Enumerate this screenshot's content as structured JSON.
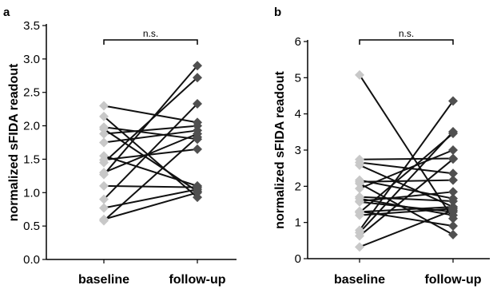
{
  "chart_data": [
    {
      "panel": "a",
      "type": "scatter",
      "ylabel": "normalized sFIDA readout",
      "categories": [
        "baseline",
        "follow-up"
      ],
      "ylim": [
        0,
        3.5
      ],
      "yticks": [
        "0.0",
        "0.5",
        "1.0",
        "1.5",
        "2.0",
        "2.5",
        "3.0",
        "3.5"
      ],
      "significance": "n.s.",
      "colors": {
        "baseline": "#c8c8c8",
        "followup": "#505050",
        "line": "#111111"
      },
      "pairs": [
        [
          2.3,
          2.05
        ],
        [
          2.14,
          0.93
        ],
        [
          1.98,
          1.8
        ],
        [
          1.95,
          1.02
        ],
        [
          1.88,
          2.0
        ],
        [
          1.75,
          1.93
        ],
        [
          1.55,
          1.1
        ],
        [
          1.49,
          1.65
        ],
        [
          1.45,
          2.72
        ],
        [
          1.3,
          1.88
        ],
        [
          1.27,
          2.9
        ],
        [
          1.1,
          1.08
        ],
        [
          0.9,
          2.33
        ],
        [
          0.77,
          1.05
        ],
        [
          0.6,
          1.0
        ],
        [
          0.58,
          1.83
        ]
      ]
    },
    {
      "panel": "b",
      "type": "scatter",
      "ylabel": "normalized sFIDA readout",
      "categories": [
        "baseline",
        "follow-up"
      ],
      "ylim": [
        0,
        6.5
      ],
      "yticks": [
        "0",
        "1",
        "2",
        "3",
        "4",
        "5",
        "6"
      ],
      "significance": "n.s.",
      "colors": {
        "baseline": "#c8c8c8",
        "followup": "#505050",
        "line": "#111111"
      },
      "pairs": [
        [
          5.5,
          1.2
        ],
        [
          2.97,
          3.0
        ],
        [
          2.88,
          2.55
        ],
        [
          2.8,
          1.55
        ],
        [
          2.35,
          1.8
        ],
        [
          2.3,
          2.35
        ],
        [
          2.25,
          0.72
        ],
        [
          2.1,
          3.25
        ],
        [
          1.85,
          1.72
        ],
        [
          1.8,
          1.3
        ],
        [
          1.72,
          2.0
        ],
        [
          1.7,
          1.4
        ],
        [
          1.42,
          0.98
        ],
        [
          1.4,
          1.55
        ],
        [
          1.38,
          3.75
        ],
        [
          1.3,
          1.5
        ],
        [
          0.85,
          4.72
        ],
        [
          0.78,
          3.8
        ],
        [
          0.68,
          2.98
        ],
        [
          0.35,
          1.45
        ]
      ]
    }
  ]
}
